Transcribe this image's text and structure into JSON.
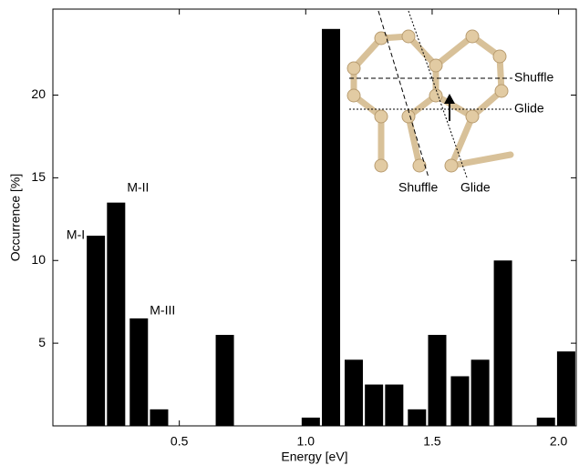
{
  "chart_data": {
    "type": "bar",
    "x": [
      0.17,
      0.25,
      0.34,
      0.42,
      0.68,
      1.02,
      1.1,
      1.19,
      1.27,
      1.35,
      1.44,
      1.52,
      1.61,
      1.69,
      1.78,
      1.95,
      2.03
    ],
    "values": [
      11.5,
      13.5,
      6.5,
      1,
      5.5,
      0.5,
      24,
      4,
      2.5,
      2.5,
      1,
      5.5,
      3,
      4,
      10,
      0.5,
      4.5
    ],
    "color": "#000000",
    "xlabel": "Energy [eV]",
    "ylabel": "Occurrence [%]",
    "xlim": [
      0,
      2.07
    ],
    "ylim": [
      0,
      25.2
    ],
    "xticks": [
      0.5,
      {
        "value": 1.0,
        "label": "1.0"
      },
      1.5,
      {
        "value": 2.0,
        "label": "2.0"
      }
    ],
    "yticks": [
      5,
      10,
      15,
      20
    ],
    "annotations": [
      "M-I",
      "M-II",
      "M-III"
    ],
    "inset_labels": [
      "Shuffle",
      "Glide",
      "Shuffle",
      "Glide"
    ]
  }
}
